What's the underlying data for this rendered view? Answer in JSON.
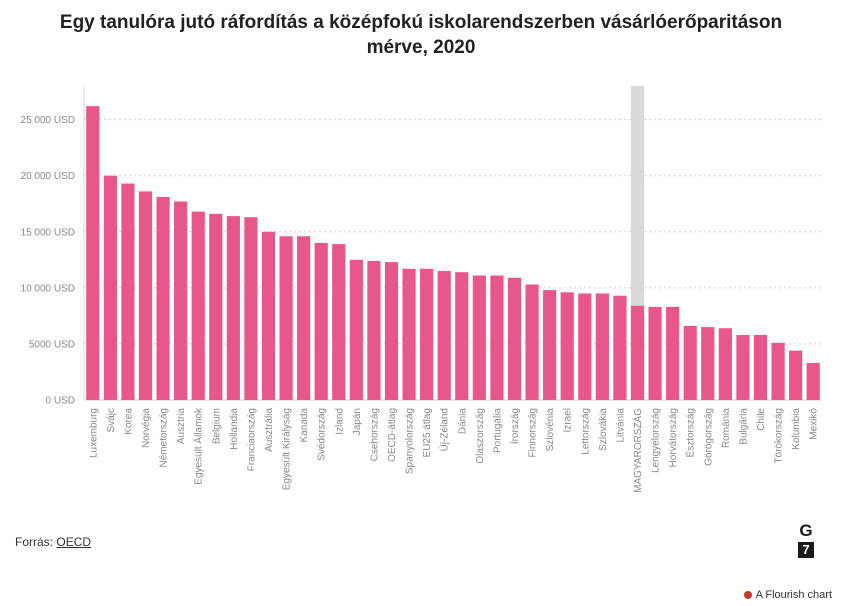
{
  "chart_data": {
    "type": "bar",
    "title_lines": [
      "Egy tanulóra jutó ráfordítás a középfokú iskolarendszerben vásárlóerőparitáson",
      "mérve, 2020"
    ],
    "xlabel": "",
    "ylabel": "",
    "ylim": [
      0,
      28000
    ],
    "yticks": [
      0,
      5000,
      10000,
      15000,
      20000,
      25000
    ],
    "ytick_labels": [
      "0 USD",
      "5000 USD",
      "10 000 USD",
      "15 000 USD",
      "20 000 USD",
      "25 000 USD"
    ],
    "grid": true,
    "bar_color": "#e8578a",
    "highlight_color": "#d9d9d9",
    "highlight_category": "MAGYARORSZÁG",
    "categories": [
      "Luxemburg",
      "Svájc",
      "Korea",
      "Norvégia",
      "Németország",
      "Ausztria",
      "Egyesült Államok",
      "Belgium",
      "Hollandia",
      "Franciaország",
      "Ausztrália",
      "Egyesült Királyság",
      "Kanada",
      "Svédország",
      "Izland",
      "Japán",
      "Csehország",
      "OECD-átlag",
      "Spanyolország",
      "EU25 átlag",
      "Új-Zéland",
      "Dánia",
      "Olaszország",
      "Portugália",
      "Írország",
      "Finnország",
      "Szlovénia",
      "Izrael",
      "Lettország",
      "Szlovákia",
      "Litvánia",
      "MAGYARORSZÁG",
      "Lengyelország",
      "Horvátország",
      "Észtország",
      "Görögország",
      "Románia",
      "Bulgária",
      "Chile",
      "Törökország",
      "Kolumbia",
      "Mexikó"
    ],
    "values": [
      26200,
      20000,
      19300,
      18600,
      18100,
      17700,
      16800,
      16600,
      16400,
      16300,
      15000,
      14600,
      14600,
      14000,
      13900,
      12500,
      12400,
      12300,
      11700,
      11700,
      11500,
      11400,
      11100,
      11100,
      10900,
      10300,
      9800,
      9600,
      9500,
      9500,
      9300,
      8400,
      8300,
      8300,
      6600,
      6500,
      6400,
      5800,
      5800,
      5100,
      4400,
      3300
    ]
  },
  "source": {
    "label": "Forrás:",
    "link_text": "OECD"
  },
  "logo": {
    "top": "G",
    "bottom": "7"
  },
  "flourish": {
    "text": "A Flourish chart",
    "dot_color": "#c0392b"
  }
}
